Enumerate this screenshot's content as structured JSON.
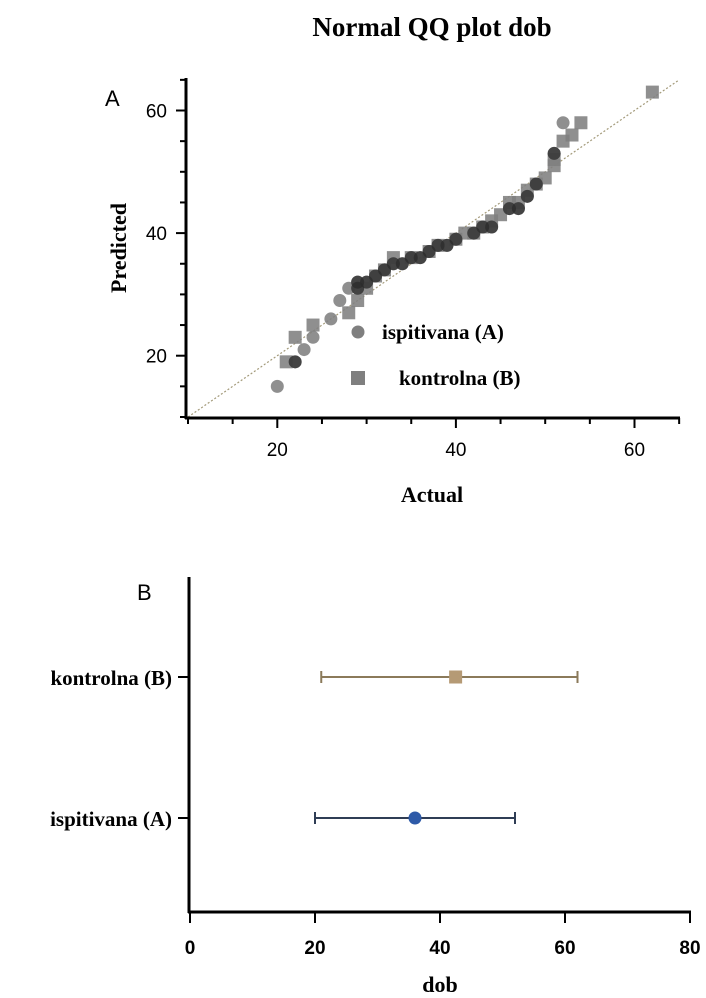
{
  "chart_data": [
    {
      "type": "scatter",
      "panel_label": "A",
      "title": "Normal QQ plot dob",
      "xlabel": "Actual",
      "ylabel": "Predicted",
      "xlim": [
        10,
        65
      ],
      "ylim": [
        10,
        65
      ],
      "xticks": [
        20,
        40,
        60
      ],
      "yticks": [
        20,
        40,
        60
      ],
      "reference_line": "y = x, dotted",
      "legend_position": "lower-right (inside)",
      "colors": {
        "ispitivana": "#7f7f7f",
        "kontrolna": "#7f7f7f",
        "overlap": "#2b2b2b",
        "reference": "#a39a7a"
      },
      "series": [
        {
          "name": "ispitivana (A)",
          "marker": "circle",
          "points": [
            [
              20,
              15
            ],
            [
              22,
              19
            ],
            [
              23,
              21
            ],
            [
              24,
              23
            ],
            [
              26,
              26
            ],
            [
              27,
              29
            ],
            [
              28,
              31
            ],
            [
              29,
              31
            ],
            [
              29,
              32
            ],
            [
              30,
              32
            ],
            [
              31,
              33
            ],
            [
              32,
              34
            ],
            [
              33,
              35
            ],
            [
              34,
              35
            ],
            [
              35,
              36
            ],
            [
              36,
              36
            ],
            [
              37,
              37
            ],
            [
              38,
              38
            ],
            [
              39,
              38
            ],
            [
              40,
              39
            ],
            [
              42,
              40
            ],
            [
              43,
              41
            ],
            [
              44,
              41
            ],
            [
              46,
              44
            ],
            [
              47,
              44
            ],
            [
              48,
              46
            ],
            [
              49,
              48
            ],
            [
              51,
              53
            ],
            [
              52,
              58
            ]
          ]
        },
        {
          "name": "kontrolna (B)",
          "marker": "square",
          "points": [
            [
              21,
              19
            ],
            [
              22,
              23
            ],
            [
              24,
              25
            ],
            [
              28,
              27
            ],
            [
              29,
              29
            ],
            [
              30,
              31
            ],
            [
              31,
              33
            ],
            [
              32,
              34
            ],
            [
              33,
              36
            ],
            [
              35,
              36
            ],
            [
              37,
              37
            ],
            [
              38,
              38
            ],
            [
              40,
              39
            ],
            [
              41,
              40
            ],
            [
              42,
              40
            ],
            [
              43,
              41
            ],
            [
              44,
              42
            ],
            [
              45,
              43
            ],
            [
              46,
              45
            ],
            [
              47,
              45
            ],
            [
              48,
              47
            ],
            [
              49,
              48
            ],
            [
              50,
              49
            ],
            [
              51,
              51
            ],
            [
              51,
              52
            ],
            [
              52,
              55
            ],
            [
              53,
              56
            ],
            [
              54,
              58
            ],
            [
              62,
              63
            ]
          ]
        }
      ]
    },
    {
      "type": "errorbar",
      "panel_label": "B",
      "xlabel": "dob",
      "xlim": [
        0,
        80
      ],
      "xticks": [
        0,
        20,
        40,
        60,
        80
      ],
      "categories": [
        "kontrolna (B)",
        "ispitivana (A)"
      ],
      "series": [
        {
          "name": "kontrolna (B)",
          "marker": "square",
          "color": "#b59a75",
          "bar_color": "#8b7a5a",
          "center": 42.5,
          "low": 21,
          "high": 62
        },
        {
          "name": "ispitivana (A)",
          "marker": "circle",
          "color": "#2e5aa8",
          "bar_color": "#2f3d55",
          "center": 36,
          "low": 20,
          "high": 52
        }
      ]
    }
  ]
}
